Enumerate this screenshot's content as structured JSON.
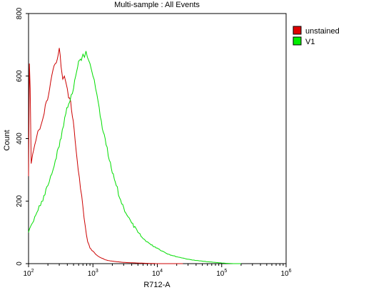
{
  "chart_data": {
    "type": "line",
    "title": "Multi-sample : All Events",
    "xlabel": "R712-A",
    "ylabel": "Count",
    "x_scale": "log",
    "xlim": [
      100,
      1000000
    ],
    "ylim": [
      0,
      800
    ],
    "x_ticks": [
      {
        "value": 100,
        "base": "10",
        "exp": "2"
      },
      {
        "value": 1000,
        "base": "10",
        "exp": "3"
      },
      {
        "value": 10000,
        "base": "10",
        "exp": "4"
      },
      {
        "value": 100000,
        "base": "10",
        "exp": "5"
      },
      {
        "value": 1000000,
        "base": "10",
        "exp": "6"
      }
    ],
    "y_ticks": [
      {
        "value": 0,
        "label": "0"
      },
      {
        "value": 200,
        "label": "200"
      },
      {
        "value": 400,
        "label": "400"
      },
      {
        "value": 600,
        "label": "600"
      },
      {
        "value": 800,
        "label": "800"
      }
    ],
    "grid": false,
    "legend_position": "top-right",
    "series": [
      {
        "name": "unstained",
        "color": "#cc0000",
        "legend_color": "#e00000",
        "x": [
          100,
          103,
          106,
          110,
          116,
          125,
          135,
          150,
          160,
          175,
          190,
          205,
          220,
          240,
          260,
          280,
          300,
          320,
          340,
          360,
          380,
          400,
          420,
          450,
          480,
          510,
          550,
          590,
          640,
          700,
          760,
          830,
          900,
          1000,
          1100,
          1200,
          1350,
          1500,
          1700,
          2000,
          2400,
          3000,
          3800,
          5000,
          7000,
          10000,
          15000,
          25000
        ],
        "y": [
          280,
          640,
          560,
          320,
          350,
          380,
          410,
          430,
          450,
          480,
          520,
          540,
          580,
          620,
          640,
          655,
          690,
          630,
          590,
          600,
          580,
          560,
          530,
          520,
          470,
          430,
          360,
          300,
          240,
          180,
          120,
          70,
          50,
          40,
          30,
          24,
          18,
          14,
          10,
          8,
          6,
          4,
          3,
          2,
          1,
          0,
          0,
          0
        ]
      },
      {
        "name": "V1",
        "color": "#00dd00",
        "legend_color": "#00ee00",
        "x": [
          100,
          103,
          108,
          115,
          125,
          140,
          160,
          180,
          200,
          220,
          240,
          260,
          290,
          320,
          350,
          380,
          420,
          460,
          500,
          540,
          580,
          620,
          660,
          700,
          740,
          780,
          820,
          860,
          900,
          950,
          1000,
          1100,
          1200,
          1300,
          1450,
          1600,
          1800,
          2000,
          2300,
          2600,
          3000,
          3500,
          4000,
          5000,
          6000,
          7000,
          8000,
          10000,
          12000,
          15000,
          20000,
          25000,
          30000,
          40000,
          50000,
          60000,
          70000,
          80000,
          100000,
          120000,
          150000,
          200000
        ],
        "y": [
          100,
          110,
          120,
          130,
          150,
          170,
          200,
          220,
          250,
          280,
          300,
          330,
          370,
          400,
          440,
          480,
          510,
          540,
          560,
          600,
          630,
          650,
          650,
          670,
          660,
          680,
          660,
          650,
          640,
          620,
          600,
          560,
          520,
          470,
          420,
          380,
          330,
          290,
          250,
          210,
          180,
          150,
          130,
          100,
          80,
          70,
          60,
          50,
          40,
          30,
          22,
          18,
          14,
          10,
          8,
          6,
          5,
          4,
          2,
          1,
          0,
          0
        ]
      }
    ]
  }
}
